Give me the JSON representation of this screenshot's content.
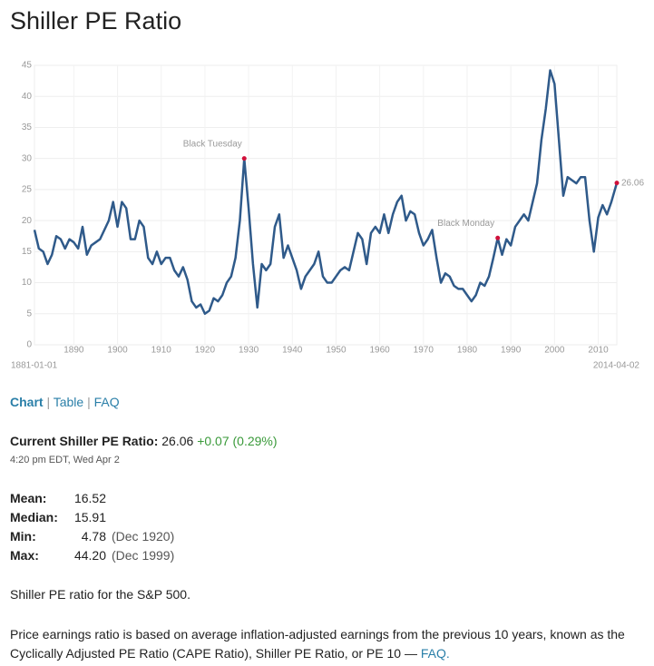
{
  "header": {
    "title": "Shiller PE Ratio"
  },
  "chart_data": {
    "type": "line",
    "x": [
      1881,
      1882,
      1883,
      1884,
      1885,
      1886,
      1887,
      1888,
      1889,
      1890,
      1891,
      1892,
      1893,
      1894,
      1895,
      1896,
      1897,
      1898,
      1899,
      1900,
      1901,
      1902,
      1903,
      1904,
      1905,
      1906,
      1907,
      1908,
      1909,
      1910,
      1911,
      1912,
      1913,
      1914,
      1915,
      1916,
      1917,
      1918,
      1919,
      1920,
      1921,
      1922,
      1923,
      1924,
      1925,
      1926,
      1927,
      1928,
      1929,
      1930,
      1931,
      1932,
      1933,
      1934,
      1935,
      1936,
      1937,
      1938,
      1939,
      1940,
      1941,
      1942,
      1943,
      1944,
      1945,
      1946,
      1947,
      1948,
      1949,
      1950,
      1951,
      1952,
      1953,
      1954,
      1955,
      1956,
      1957,
      1958,
      1959,
      1960,
      1961,
      1962,
      1963,
      1964,
      1965,
      1966,
      1967,
      1968,
      1969,
      1970,
      1971,
      1972,
      1973,
      1974,
      1975,
      1976,
      1977,
      1978,
      1979,
      1980,
      1981,
      1982,
      1983,
      1984,
      1985,
      1986,
      1987,
      1988,
      1989,
      1990,
      1991,
      1992,
      1993,
      1994,
      1995,
      1996,
      1997,
      1998,
      1999,
      2000,
      2001,
      2002,
      2003,
      2004,
      2005,
      2006,
      2007,
      2008,
      2009,
      2010,
      2011,
      2012,
      2013,
      2014.25
    ],
    "series": [
      {
        "name": "Shiller PE Ratio",
        "color": "#2f5a8a",
        "values": [
          18.5,
          15.5,
          15,
          13,
          14.5,
          17.5,
          17,
          15.5,
          17,
          16.5,
          15.5,
          19,
          14.5,
          16,
          16.5,
          17,
          18.5,
          20,
          23,
          19,
          23,
          22,
          17,
          17,
          20,
          19,
          14,
          13,
          15,
          13,
          14,
          14,
          12,
          11,
          12.5,
          10.5,
          7,
          6,
          6.5,
          5,
          5.5,
          7.5,
          7,
          8,
          10,
          11,
          14,
          20,
          30,
          22,
          13,
          6,
          13,
          12,
          13,
          19,
          21,
          14,
          16,
          14,
          12,
          9,
          11,
          12,
          13,
          15,
          11,
          10,
          10,
          11,
          12,
          12.5,
          12,
          15,
          18,
          17,
          13,
          18,
          19,
          18,
          21,
          18,
          21,
          23,
          24,
          20,
          21.5,
          21,
          18,
          16,
          17,
          18.5,
          14,
          10,
          11.5,
          11,
          9.5,
          9,
          9,
          8,
          7,
          8,
          10,
          9.5,
          11,
          14,
          17.2,
          14.5,
          17,
          16,
          19,
          20,
          21,
          20,
          23,
          26,
          33,
          38,
          44.2,
          42,
          33,
          24,
          27,
          26.5,
          26,
          27,
          27,
          20,
          15,
          20.5,
          22.5,
          21,
          23,
          26.06
        ]
      }
    ],
    "annotations": [
      {
        "text": "Black Tuesday",
        "x": 1929,
        "y": 30
      },
      {
        "text": "Black Monday",
        "x": 1987,
        "y": 17.2
      }
    ],
    "start_label": "1881-01-01",
    "end_label": "2014-04-02",
    "xlim": [
      1881,
      2014.25
    ],
    "ylim": [
      0,
      45
    ],
    "xticks": [
      1890,
      1900,
      1910,
      1920,
      1930,
      1940,
      1950,
      1960,
      1970,
      1980,
      1990,
      2000,
      2010
    ],
    "yticks": [
      0,
      5,
      10,
      15,
      20,
      25,
      30,
      35,
      40,
      45
    ],
    "grid": true
  },
  "nav": [
    "Chart",
    "Table",
    "FAQ"
  ],
  "current": {
    "label": "Current Shiller PE Ratio:",
    "value": "26.06",
    "change": "+0.07 (0.29%)",
    "time": "4:20 pm EDT, Wed Apr 2"
  },
  "stats": [
    [
      "Mean:",
      "16.52",
      ""
    ],
    [
      "Median:",
      "15.91",
      ""
    ],
    [
      "Min:",
      "4.78",
      "(Dec 1920)"
    ],
    [
      "Max:",
      "44.20",
      "(Dec 1999)"
    ]
  ],
  "description": "Shiller PE ratio for the S&P 500.",
  "paragraph": {
    "text": "Price earnings ratio is based on average inflation-adjusted earnings from the previous 10 years, known as the Cyclically Adjusted PE Ratio (CAPE Ratio), Shiller PE Ratio, or PE 10 — ",
    "link": "FAQ."
  }
}
